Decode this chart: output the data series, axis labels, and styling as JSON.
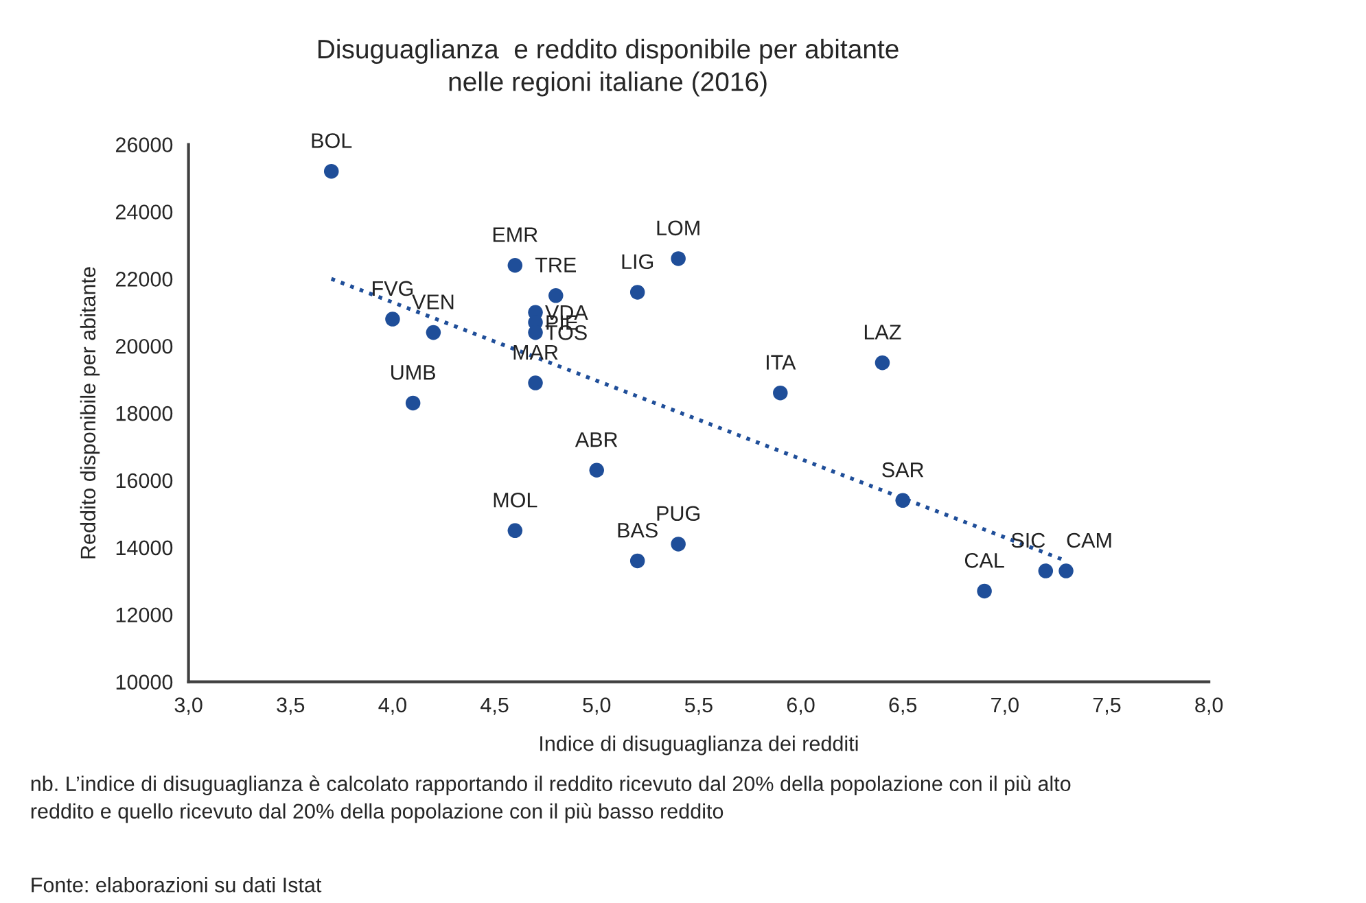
{
  "chart_data": {
    "type": "scatter",
    "title": "Disuguaglianza  e reddito disponibile per abitante\nnelle regioni italiane (2016)",
    "xlabel": "Indice di disuguaglianza dei redditi",
    "ylabel": "Reddito disponibile per abitante",
    "xlim": [
      3.0,
      8.0
    ],
    "xticks": [
      {
        "value": 3.0,
        "label": "3,0"
      },
      {
        "value": 3.5,
        "label": "3,5"
      },
      {
        "value": 4.0,
        "label": "4,0"
      },
      {
        "value": 4.5,
        "label": "4,5"
      },
      {
        "value": 5.0,
        "label": "5,0"
      },
      {
        "value": 5.5,
        "label": "5,5"
      },
      {
        "value": 6.0,
        "label": "6,0"
      },
      {
        "value": 6.5,
        "label": "6,5"
      },
      {
        "value": 7.0,
        "label": "7,0"
      },
      {
        "value": 7.5,
        "label": "7,5"
      },
      {
        "value": 8.0,
        "label": "8,0"
      }
    ],
    "ylim": [
      10000,
      26000
    ],
    "yticks": [
      10000,
      12000,
      14000,
      16000,
      18000,
      20000,
      22000,
      24000,
      26000
    ],
    "grid": false,
    "legend": false,
    "marker": "circle",
    "series": [
      {
        "color": "#1f4e99",
        "x": [
          3.7,
          4.0,
          4.2,
          4.1,
          4.6,
          4.8,
          4.7,
          4.7,
          4.7,
          4.7,
          5.2,
          5.4,
          5.9,
          6.4,
          5.0,
          4.6,
          5.2,
          5.4,
          6.5,
          6.9,
          7.2,
          7.3
        ],
        "values": [
          25200,
          20800,
          20400,
          18300,
          22400,
          21500,
          21000,
          20700,
          20400,
          18900,
          21600,
          22600,
          18600,
          19500,
          16300,
          14500,
          13600,
          14100,
          15400,
          12700,
          13300,
          13300
        ],
        "value_labels": [
          "BOL",
          "FVG",
          "VEN",
          "UMB",
          "EMR",
          "TRE",
          "VDA",
          "PIE",
          "TOS",
          "MAR",
          "LIG",
          "LOM",
          "ITA",
          "LAZ",
          "ABR",
          "MOL",
          "BAS",
          "PUG",
          "SAR",
          "CAL",
          "SIC",
          "CAM"
        ]
      },
      {
        "type": "line",
        "color": "#1f4e99",
        "line_style": "dotted",
        "marker": "none",
        "x": [
          3.7,
          7.3
        ],
        "values": [
          22000,
          13600
        ]
      }
    ],
    "annotations": [
      "nb. L’indice di disuguaglianza è calcolato rapportando il reddito ricevuto dal 20% della popolazione con il più alto\nreddito e quello ricevuto dal 20% della popolazione con il più basso reddito",
      "Fonte: elaborazioni su dati Istat"
    ]
  }
}
